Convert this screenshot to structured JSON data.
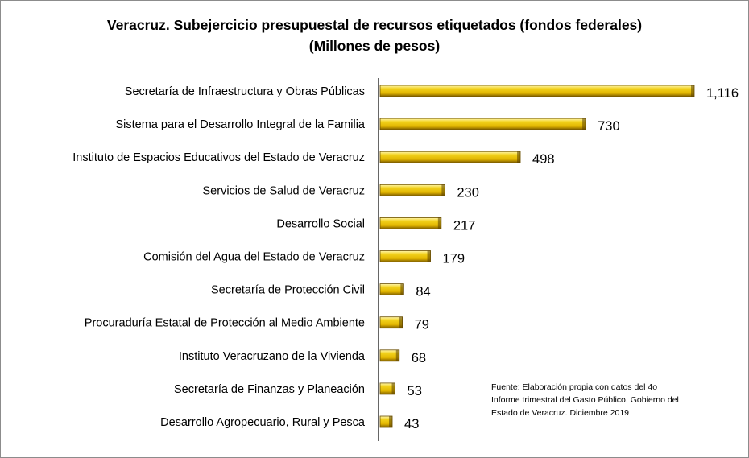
{
  "chart_data": {
    "type": "bar",
    "orientation": "horizontal",
    "title": "Veracruz. Subejercicio presupuestal de recursos etiquetados (fondos federales)",
    "subtitle": "(Millones de pesos)",
    "categories": [
      "Secretaría de Infraestructura y Obras Públicas",
      "Sistema para el Desarrollo Integral de la Familia",
      "Instituto de Espacios Educativos del Estado de Veracruz",
      "Servicios de Salud de Veracruz",
      "Desarrollo Social",
      "Comisión del Agua del Estado de Veracruz",
      "Secretaría de Protección Civil",
      "Procuraduría Estatal de Protección al Medio Ambiente",
      "Instituto Veracruzano de la Vivienda",
      "Secretaría de Finanzas y Planeación",
      "Desarrollo Agropecuario, Rural y Pesca"
    ],
    "values": [
      1116,
      730,
      498,
      230,
      217,
      179,
      84,
      79,
      68,
      53,
      43
    ],
    "value_labels": [
      "1,116",
      "730",
      "498",
      "230",
      "217",
      "179",
      "84",
      "79",
      "68",
      "53",
      "43"
    ],
    "xlim": [
      0,
      1116
    ],
    "grid": false,
    "legend": "none",
    "bar_color": "#e6c200"
  },
  "source_lines": [
    "Fuente: Elaboración propia con datos del 4o",
    "Informe trimestral del Gasto Público. Gobierno del",
    "Estado de Veracruz. Diciembre 2019"
  ]
}
